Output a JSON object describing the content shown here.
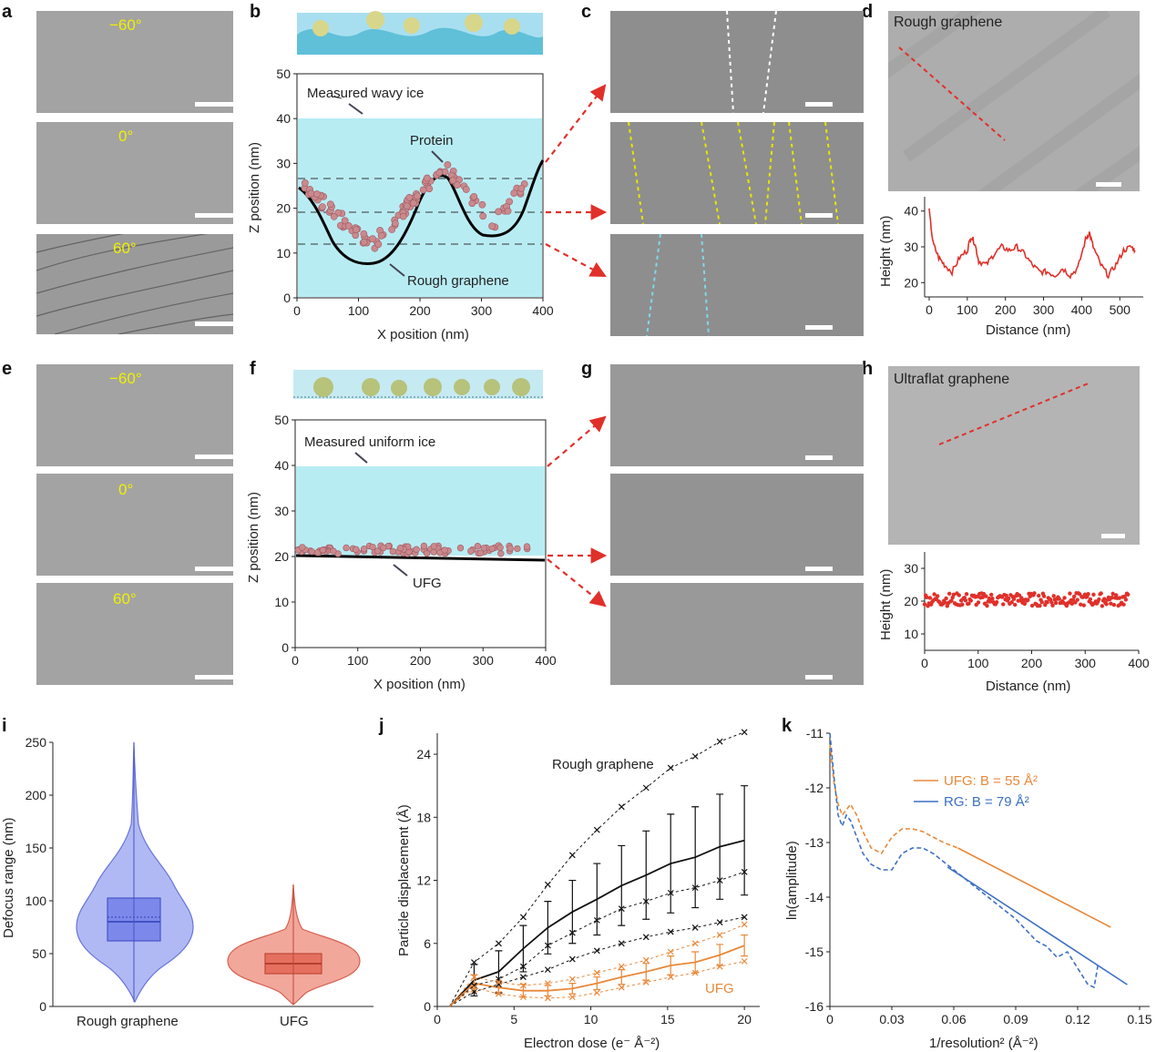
{
  "panel_letters": [
    "a",
    "b",
    "c",
    "d",
    "e",
    "f",
    "g",
    "h",
    "i",
    "j",
    "k"
  ],
  "angles": {
    "a": [
      "−60°",
      "0°",
      "60°"
    ],
    "e": [
      "−60°",
      "0°",
      "60°"
    ]
  },
  "panel_d": {
    "label": "Rough graphene"
  },
  "panel_h": {
    "label": "Ultraflat graphene"
  },
  "panel_b": {
    "ylabel": "Z position (nm)",
    "xlabel": "X position (nm)",
    "ann_ice": "Measured wavy ice",
    "ann_protein": "Protein",
    "ann_graphene": "Rough graphene",
    "xticks": [
      "0",
      "100",
      "200",
      "300",
      "400"
    ],
    "yticks": [
      "0",
      "10",
      "20",
      "30",
      "40",
      "50"
    ]
  },
  "panel_f": {
    "ylabel": "Z position (nm)",
    "xlabel": "X position (nm)",
    "ann_ice": "Measured uniform ice",
    "ann_graphene": "UFG",
    "xticks": [
      "0",
      "100",
      "200",
      "300",
      "400"
    ],
    "yticks": [
      "0",
      "10",
      "20",
      "30",
      "40",
      "50"
    ]
  },
  "panel_d_plot": {
    "ylabel": "Height (nm)",
    "xlabel": "Distance (nm)",
    "xticks": [
      "0",
      "100",
      "200",
      "300",
      "400",
      "500"
    ],
    "yticks": [
      "20",
      "30",
      "40"
    ]
  },
  "panel_h_plot": {
    "ylabel": "Height (nm)",
    "xlabel": "Distance (nm)",
    "xticks": [
      "0",
      "100",
      "200",
      "300",
      "400"
    ],
    "yticks": [
      "10",
      "20",
      "30"
    ]
  },
  "panel_i": {
    "ylabel": "Defocus range (nm)",
    "yticks": [
      "0",
      "50",
      "100",
      "150",
      "200",
      "250"
    ],
    "categories": [
      "Rough graphene",
      "UFG"
    ]
  },
  "panel_j": {
    "ylabel": "Particle displacement (Å)",
    "xlabel": "Electron dose (e⁻ Å⁻²)",
    "xticks": [
      "0",
      "5",
      "10",
      "15",
      "20"
    ],
    "yticks": [
      "0",
      "6",
      "12",
      "18",
      "24"
    ],
    "label_rg": "Rough graphene",
    "label_ufg": "UFG"
  },
  "panel_k": {
    "ylabel": "ln(amplitude)",
    "xlabel": "1/resolution² (Å⁻²)",
    "xticks": [
      "0",
      "0.03",
      "0.06",
      "0.09",
      "0.12",
      "0.15"
    ],
    "yticks": [
      "-11",
      "-12",
      "-13",
      "-14",
      "-15",
      "-16"
    ],
    "legend_ufg": "UFG: B = 55 Å²",
    "legend_rg": "RG: B = 79 Å²"
  },
  "colors": {
    "ice": "#b8ecf3",
    "ufg_orange": "#e8883a",
    "rg_blue": "#3d6fc4",
    "protein": "#c98a8e",
    "red_dash": "#e0302a",
    "violin_blue": "#8f9bf0",
    "violin_red": "#ee8a7a"
  },
  "chart_data": [
    {
      "type": "line",
      "id": "d",
      "xlabel": "Distance (nm)",
      "ylabel": "Height (nm)",
      "xlim": [
        0,
        540
      ],
      "ylim": [
        16,
        44
      ],
      "series": [
        {
          "x": [
            0,
            10,
            25,
            40,
            60,
            80,
            100,
            110,
            120,
            130,
            150,
            170,
            190,
            210,
            230,
            250,
            270,
            290,
            310,
            330,
            350,
            370,
            390,
            410,
            420,
            430,
            450,
            470,
            490,
            510,
            530,
            540
          ],
          "y": [
            40,
            31,
            27,
            25,
            23,
            27,
            29,
            33,
            31,
            26,
            25,
            28,
            30,
            29,
            30,
            28,
            25,
            23,
            23,
            22,
            24,
            22,
            24,
            32,
            34,
            30,
            25,
            22,
            25,
            29,
            30,
            29
          ]
        }
      ]
    },
    {
      "type": "scatter",
      "id": "h",
      "xlabel": "Distance (nm)",
      "ylabel": "Height (nm)",
      "xlim": [
        0,
        400
      ],
      "ylim": [
        5,
        35
      ],
      "series": [
        {
          "mean": 20.5,
          "x_range": [
            0,
            380
          ]
        }
      ]
    },
    {
      "type": "violin",
      "id": "i",
      "ylabel": "Defocus range (nm)",
      "ylim": [
        0,
        250
      ],
      "categories": [
        "Rough graphene",
        "UFG"
      ],
      "series": [
        {
          "min": 5,
          "q1": 60,
          "median": 78,
          "mean": 82,
          "q3": 100,
          "max": 245
        },
        {
          "min": 12,
          "q1": 30,
          "median": 38,
          "mean": 40,
          "q3": 46,
          "max": 110
        }
      ]
    },
    {
      "type": "line",
      "id": "j",
      "xlabel": "Electron dose (e⁻ Å⁻²)",
      "ylabel": "Particle displacement (Å)",
      "xlim": [
        0,
        21
      ],
      "ylim": [
        0,
        26
      ],
      "x": [
        0.8,
        2.4,
        4.0,
        5.6,
        7.2,
        8.8,
        10.4,
        12.0,
        13.6,
        15.2,
        16.8,
        18.4,
        20.0
      ],
      "series": [
        {
          "name": "Rough graphene",
          "y": [
            0,
            2.5,
            3.3,
            5.5,
            7.5,
            9.0,
            10.2,
            11.5,
            12.5,
            13.6,
            14.2,
            15.2,
            15.8
          ],
          "err": [
            0,
            1.5,
            2.0,
            2.2,
            2.5,
            3.0,
            3.4,
            3.8,
            4.2,
            4.7,
            4.8,
            5.0,
            5.2
          ]
        },
        {
          "name": "UFG",
          "y": [
            0,
            2.2,
            1.8,
            1.5,
            1.5,
            1.7,
            2.2,
            2.8,
            3.3,
            3.9,
            4.2,
            4.9,
            5.8
          ],
          "err": [
            0,
            0.8,
            0.6,
            0.6,
            0.5,
            0.5,
            0.6,
            0.7,
            0.8,
            0.9,
            1.0,
            1.0,
            1.0
          ]
        },
        {
          "name": "RG upper",
          "y": [
            0,
            4.2,
            6.0,
            8.5,
            11.6,
            14.4,
            16.8,
            19.0,
            20.8,
            22.7,
            23.8,
            25.2,
            26.1
          ]
        },
        {
          "name": "RG lower 1",
          "y": [
            0,
            2.0,
            2.6,
            3.8,
            5.8,
            7.0,
            8.2,
            9.3,
            10.0,
            10.8,
            11.3,
            12.0,
            12.8
          ]
        },
        {
          "name": "RG lower 2",
          "y": [
            0,
            1.4,
            2.1,
            2.8,
            3.5,
            4.5,
            5.3,
            6.0,
            6.6,
            7.1,
            7.5,
            8.0,
            8.5
          ]
        },
        {
          "name": "UFG upper",
          "y": [
            0,
            2.8,
            2.3,
            2.0,
            2.2,
            2.6,
            3.2,
            3.8,
            4.4,
            5.2,
            6.0,
            6.8,
            7.8
          ]
        },
        {
          "name": "UFG lower",
          "y": [
            0,
            1.8,
            1.2,
            0.9,
            0.8,
            0.9,
            1.3,
            1.8,
            2.3,
            2.8,
            3.2,
            3.8,
            4.3
          ]
        }
      ]
    },
    {
      "type": "line",
      "id": "k",
      "xlabel": "1/resolution² (Å⁻²)",
      "ylabel": "ln(amplitude)",
      "xlim": [
        0,
        0.15
      ],
      "ylim": [
        -16,
        -11
      ],
      "series": [
        {
          "name": "UFG: B = 55 Å²",
          "fit": [
            [
              0.062,
              -13.1
            ],
            [
              0.136,
              -14.55
            ]
          ],
          "x": [
            0,
            0.002,
            0.004,
            0.006,
            0.008,
            0.01,
            0.013,
            0.016,
            0.02,
            0.025,
            0.03,
            0.035,
            0.04,
            0.045,
            0.05,
            0.055,
            0.062
          ],
          "y": [
            -11.2,
            -11.9,
            -12.3,
            -12.5,
            -12.4,
            -12.3,
            -12.5,
            -12.8,
            -13.1,
            -13.2,
            -12.9,
            -12.75,
            -12.75,
            -12.8,
            -12.9,
            -13.0,
            -13.1
          ]
        },
        {
          "name": "RG: B = 79 Å²",
          "fit": [
            [
              0.057,
              -13.45
            ],
            [
              0.144,
              -15.6
            ]
          ],
          "x": [
            0,
            0.002,
            0.004,
            0.006,
            0.008,
            0.01,
            0.013,
            0.016,
            0.02,
            0.025,
            0.03,
            0.035,
            0.04,
            0.045,
            0.05,
            0.055,
            0.06,
            0.07,
            0.08,
            0.09,
            0.1,
            0.105,
            0.11,
            0.115,
            0.12,
            0.125,
            0.128,
            0.13
          ],
          "y": [
            -11.0,
            -11.8,
            -12.5,
            -12.7,
            -12.5,
            -12.6,
            -12.9,
            -13.2,
            -13.4,
            -13.5,
            -13.5,
            -13.2,
            -13.1,
            -13.1,
            -13.2,
            -13.35,
            -13.5,
            -13.8,
            -14.1,
            -14.4,
            -14.8,
            -14.9,
            -15.1,
            -15.0,
            -15.3,
            -15.6,
            -15.65,
            -15.2
          ]
        }
      ]
    }
  ]
}
